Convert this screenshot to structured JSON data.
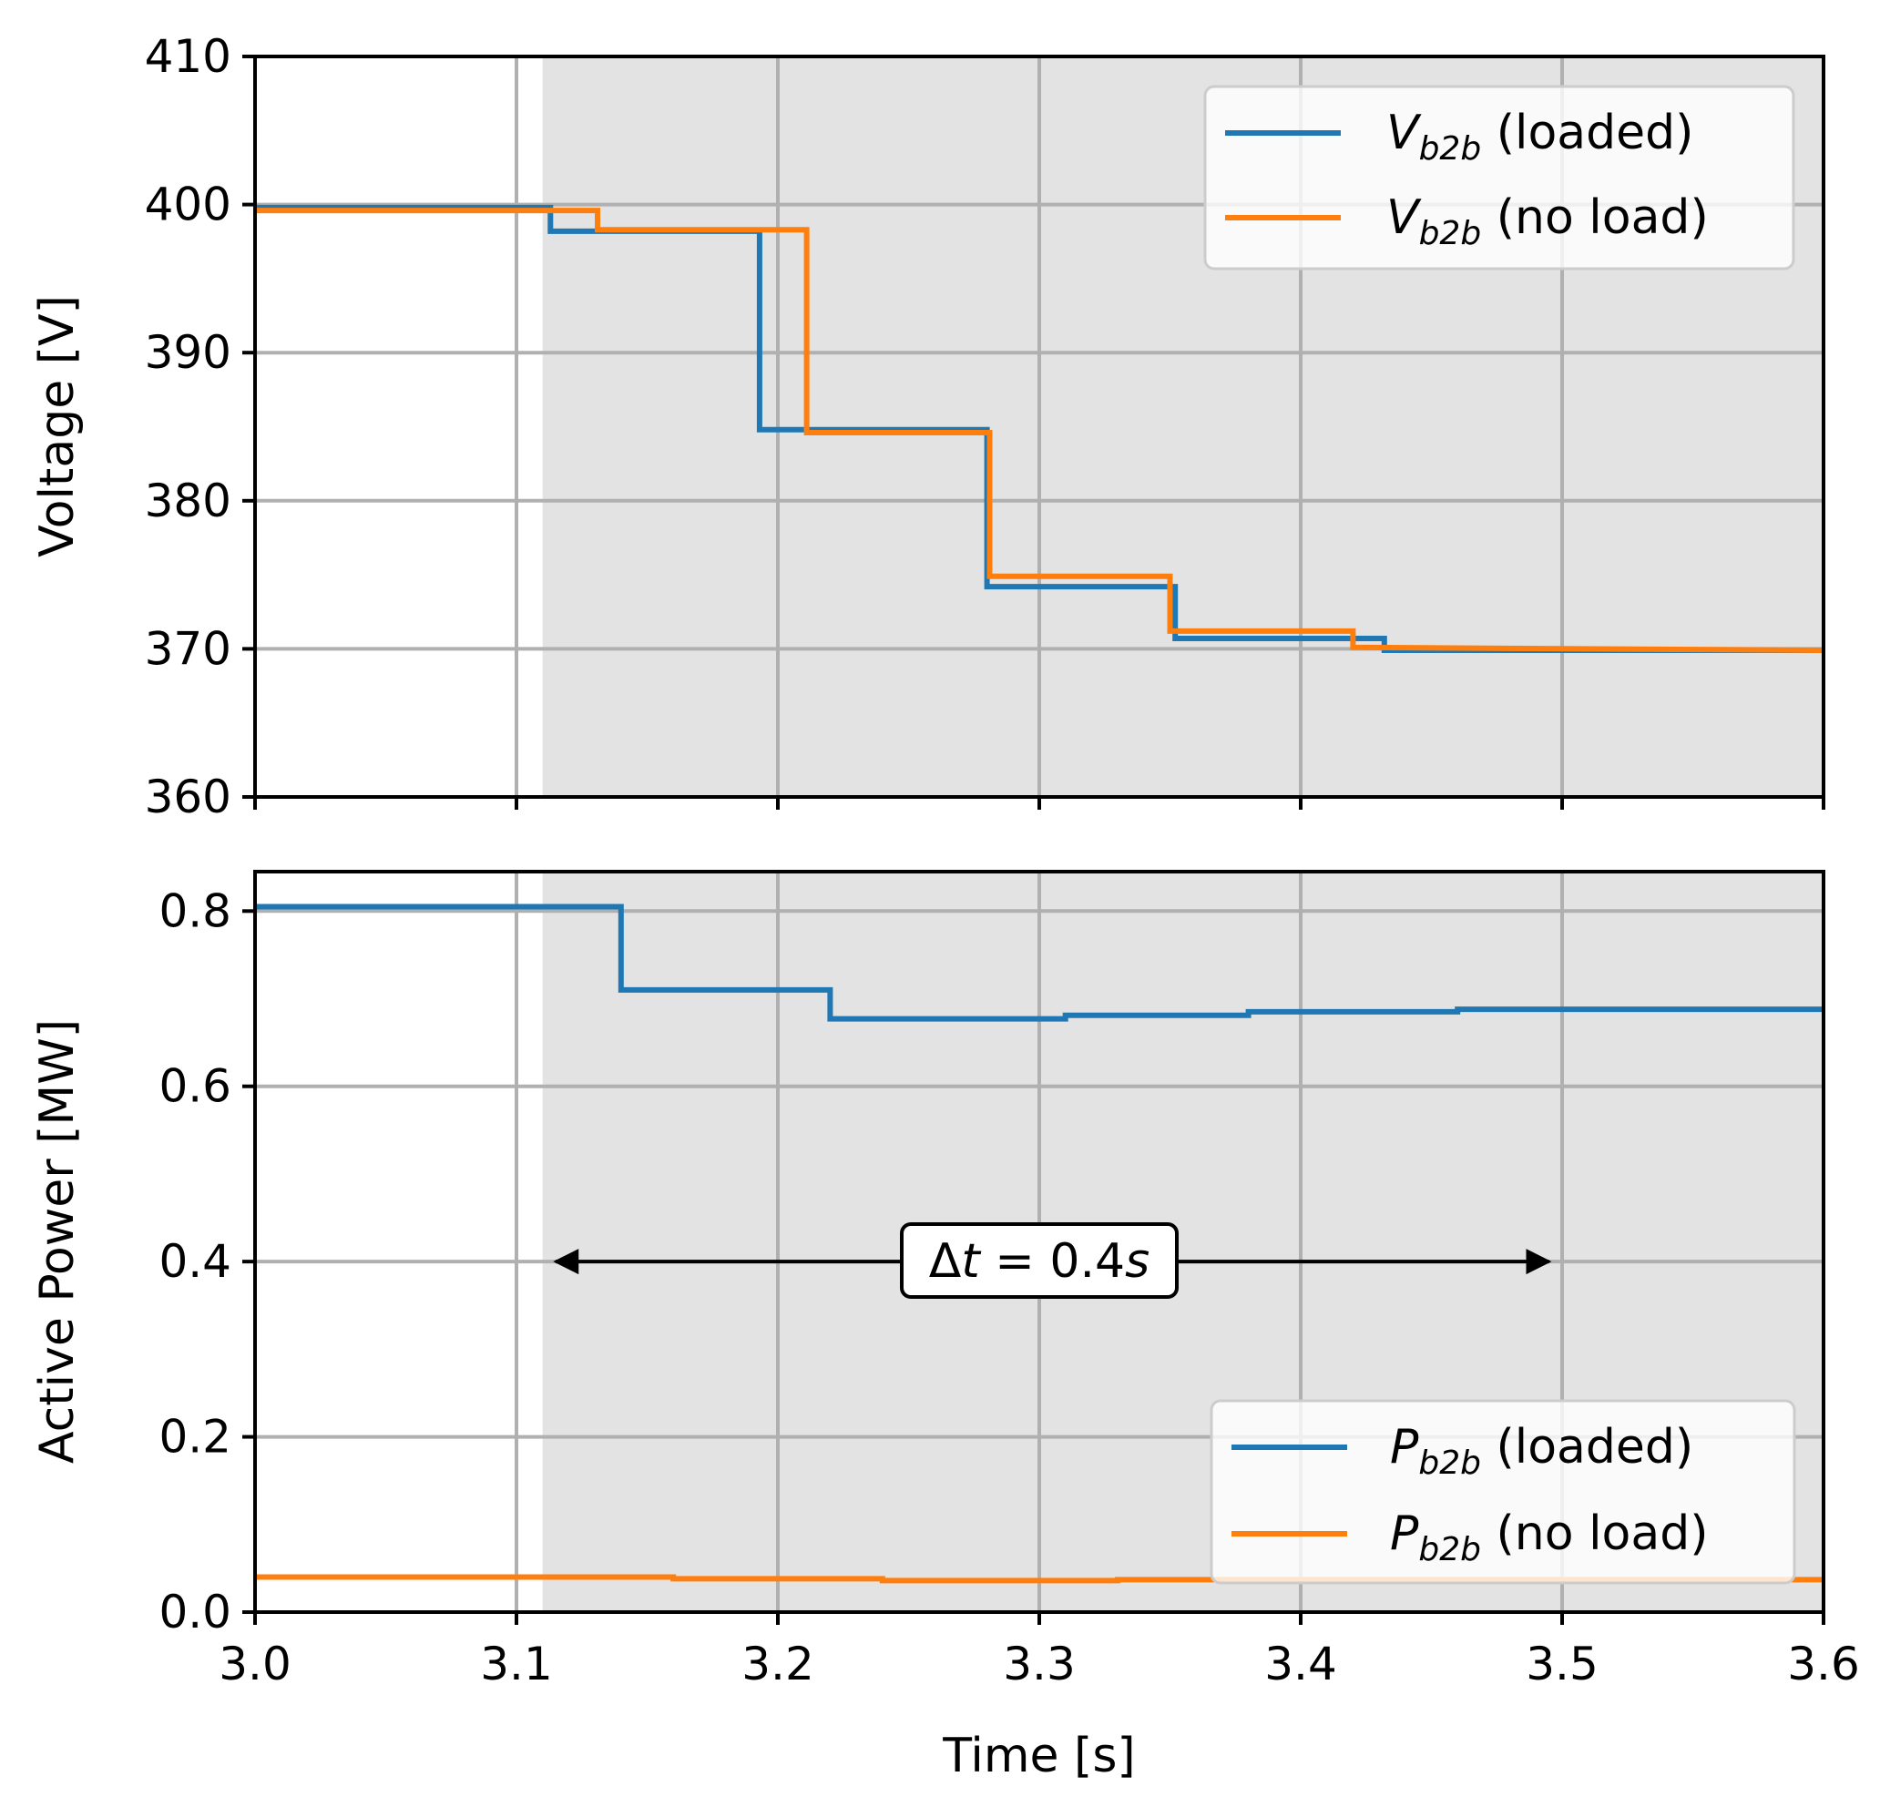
{
  "chart_data": [
    {
      "type": "line",
      "panel": "top",
      "title": "",
      "xlabel": "",
      "ylabel": "Voltage [V]",
      "xlim": [
        3.0,
        3.6
      ],
      "ylim": [
        360,
        410
      ],
      "grid": true,
      "x_ticks": [
        3.0,
        3.1,
        3.2,
        3.3,
        3.4,
        3.5,
        3.6
      ],
      "y_ticks": [
        360,
        370,
        380,
        390,
        400,
        410
      ],
      "y_tick_labels": [
        "360",
        "370",
        "380",
        "390",
        "400",
        "410"
      ],
      "shaded_region": {
        "x_start": 3.11,
        "x_end": 3.6,
        "color": "#e3e3e3"
      },
      "legend": {
        "location": "upper right",
        "entries": [
          {
            "symbol": "V",
            "subscript": "b2b",
            "suffix": " (loaded)",
            "color": "#1f77b4"
          },
          {
            "symbol": "V",
            "subscript": "b2b",
            "suffix": " (no load)",
            "color": "#ff7f0e"
          }
        ]
      },
      "series": [
        {
          "name": "V_b2b (loaded)",
          "color": "#1f77b4",
          "x": [
            3.0,
            3.113,
            3.113,
            3.193,
            3.193,
            3.28,
            3.28,
            3.352,
            3.352,
            3.432,
            3.432,
            3.6
          ],
          "values": [
            399.8,
            399.8,
            398.2,
            398.2,
            384.8,
            384.8,
            374.2,
            374.2,
            370.7,
            370.7,
            369.9,
            369.9
          ]
        },
        {
          "name": "V_b2b (no load)",
          "color": "#ff7f0e",
          "x": [
            3.0,
            3.131,
            3.131,
            3.211,
            3.211,
            3.281,
            3.281,
            3.35,
            3.35,
            3.42,
            3.42,
            3.6
          ],
          "values": [
            399.6,
            399.6,
            398.3,
            398.3,
            384.6,
            384.6,
            374.9,
            374.9,
            371.2,
            371.2,
            370.1,
            369.9
          ]
        }
      ]
    },
    {
      "type": "line",
      "panel": "bottom",
      "title": "",
      "xlabel": "Time [s]",
      "ylabel": "Active Power [MW]",
      "xlim": [
        3.0,
        3.6
      ],
      "ylim": [
        0.0,
        0.845
      ],
      "grid": true,
      "x_ticks": [
        3.0,
        3.1,
        3.2,
        3.3,
        3.4,
        3.5,
        3.6
      ],
      "x_tick_labels": [
        "3.0",
        "3.1",
        "3.2",
        "3.3",
        "3.4",
        "3.5",
        "3.6"
      ],
      "y_ticks": [
        0.0,
        0.2,
        0.4,
        0.6,
        0.8
      ],
      "y_tick_labels": [
        "0.0",
        "0.2",
        "0.4",
        "0.6",
        "0.8"
      ],
      "shaded_region": {
        "x_start": 3.11,
        "x_end": 3.6,
        "color": "#e3e3e3"
      },
      "legend": {
        "location": "lower right",
        "entries": [
          {
            "symbol": "P",
            "subscript": "b2b",
            "suffix": " (loaded)",
            "color": "#1f77b4"
          },
          {
            "symbol": "P",
            "subscript": "b2b",
            "suffix": " (no load)",
            "color": "#ff7f0e"
          }
        ]
      },
      "annotation": {
        "prefix": "Δ",
        "symbol": "t",
        "equals": " = ",
        "value": "0.4",
        "unit": "s",
        "arrow_from_x": 3.115,
        "arrow_to_x": 3.495,
        "y": 0.4
      },
      "series": [
        {
          "name": "P_b2b (loaded)",
          "color": "#1f77b4",
          "x": [
            3.0,
            3.14,
            3.14,
            3.22,
            3.22,
            3.31,
            3.31,
            3.38,
            3.38,
            3.46,
            3.46,
            3.6
          ],
          "values": [
            0.805,
            0.805,
            0.71,
            0.71,
            0.677,
            0.677,
            0.681,
            0.681,
            0.685,
            0.685,
            0.688,
            0.688
          ]
        },
        {
          "name": "P_b2b (no load)",
          "color": "#ff7f0e",
          "x": [
            3.0,
            3.16,
            3.16,
            3.24,
            3.24,
            3.33,
            3.33,
            3.6
          ],
          "values": [
            0.04,
            0.04,
            0.038,
            0.038,
            0.036,
            0.036,
            0.037,
            0.037
          ]
        }
      ]
    }
  ]
}
